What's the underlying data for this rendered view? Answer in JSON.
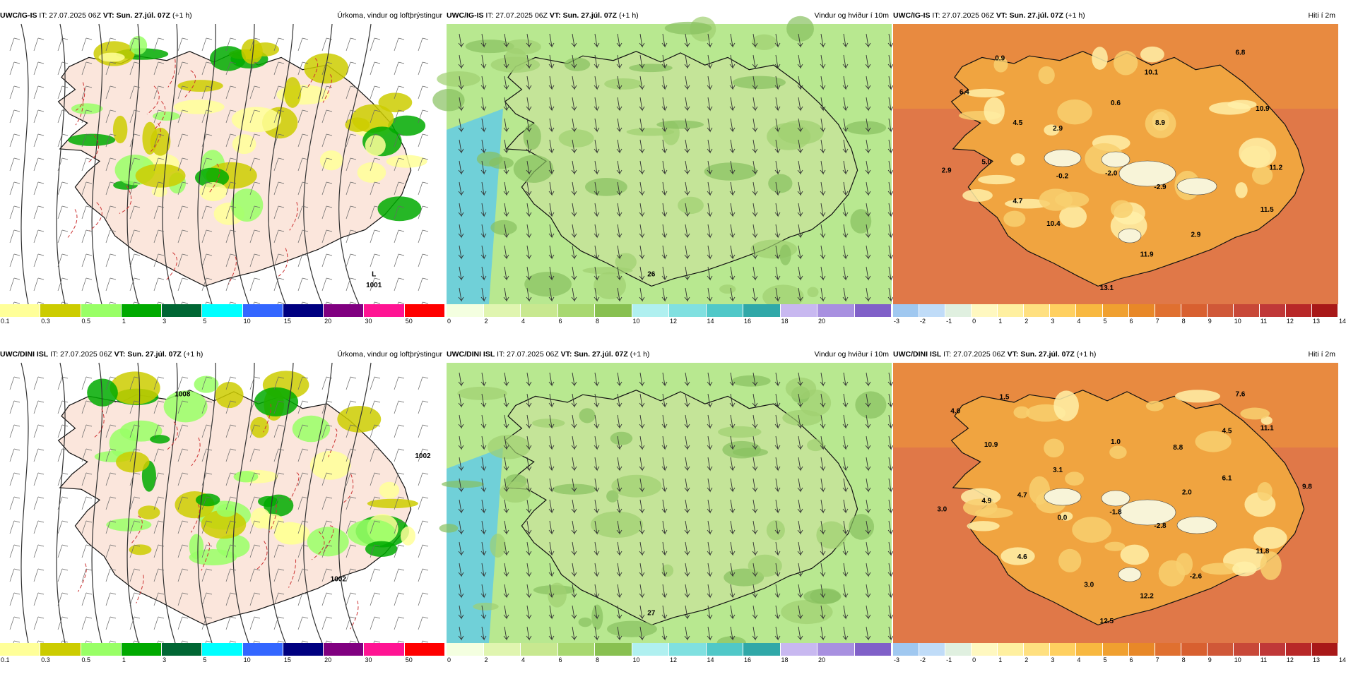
{
  "panels": [
    {
      "model": "UWC/IG-IS",
      "it": "IT: 27.07.2025 06Z",
      "vt": "VT: Sun. 27.júl. 07Z",
      "step": "(+1 h)",
      "title": "Úrkoma, vindur og loftþrýstingur",
      "type": "precip",
      "scale": {
        "colors": [
          "#ffff99",
          "#cccc00",
          "#99ff66",
          "#00aa00",
          "#006633",
          "#00ffff",
          "#3366ff",
          "#000080",
          "#800080",
          "#ff1493",
          "#ff0000"
        ],
        "ticks": [
          "0.1",
          "0.3",
          "0.5",
          "1",
          "3",
          "5",
          "10",
          "15",
          "20",
          "30",
          "50"
        ]
      },
      "labels": [
        {
          "text": "L"
        },
        {
          "text": "1001"
        }
      ]
    },
    {
      "model": "UWC/IG-IS",
      "it": "IT: 27.07.2025 06Z",
      "vt": "VT: Sun. 27.júl. 07Z",
      "step": "(+1 h)",
      "title": "Vindur og hviður í 10m",
      "type": "wind",
      "scale": {
        "colors": [
          "#f4ffe0",
          "#e0f5b0",
          "#c8e890",
          "#a8d870",
          "#88c050",
          "#b0f0f0",
          "#80e0e0",
          "#50c8c8",
          "#30a8a8",
          "#c8b8f0",
          "#a890e0",
          "#8060c8"
        ],
        "ticks": [
          "0",
          "2",
          "4",
          "6",
          "8",
          "10",
          "12",
          "14",
          "16",
          "18",
          "20"
        ]
      },
      "labels": [
        {
          "text": "26"
        }
      ]
    },
    {
      "model": "UWC/IG-IS",
      "it": "IT: 27.07.2025 06Z",
      "vt": "VT: Sun. 27.júl. 07Z",
      "step": "(+1 h)",
      "title": "Hiti í 2m",
      "type": "temp",
      "scale": {
        "colors": [
          "#a0c8f0",
          "#c0dcf8",
          "#e0f0e0",
          "#fff8c0",
          "#fff0a0",
          "#ffe080",
          "#ffd060",
          "#f8b840",
          "#f0a030",
          "#e88828",
          "#e07030",
          "#d86030",
          "#d05838",
          "#c84838",
          "#c03838",
          "#b82828",
          "#a81818"
        ],
        "ticks": [
          "-3",
          "-2",
          "-1",
          "0",
          "1",
          "2",
          "3",
          "4",
          "5",
          "6",
          "7",
          "8",
          "9",
          "10",
          "11",
          "12",
          "13",
          "14"
        ]
      },
      "labels": [
        {
          "text": "0.9"
        },
        {
          "text": "6.8"
        },
        {
          "text": "6.4"
        },
        {
          "text": "10.1"
        },
        {
          "text": "0.6"
        },
        {
          "text": "4.5"
        },
        {
          "text": "2.9"
        },
        {
          "text": "8.9"
        },
        {
          "text": "10.9"
        },
        {
          "text": "5.0"
        },
        {
          "text": "2.9"
        },
        {
          "text": "-0.2"
        },
        {
          "text": "-2.0"
        },
        {
          "text": "-2.9"
        },
        {
          "text": "11.2"
        },
        {
          "text": "4.7"
        },
        {
          "text": "11.5"
        },
        {
          "text": "10.4"
        },
        {
          "text": "2.9"
        },
        {
          "text": "11.9"
        },
        {
          "text": "13.1"
        }
      ]
    },
    {
      "model": "UWC/DINI ISL",
      "it": "IT: 27.07.2025 06Z",
      "vt": "VT: Sun. 27.júl. 07Z",
      "step": "(+1 h)",
      "title": "Úrkoma, vindur og loftþrýstingur",
      "type": "precip",
      "scale": {
        "colors": [
          "#ffff99",
          "#cccc00",
          "#99ff66",
          "#00aa00",
          "#006633",
          "#00ffff",
          "#3366ff",
          "#000080",
          "#800080",
          "#ff1493",
          "#ff0000"
        ],
        "ticks": [
          "0.1",
          "0.3",
          "0.5",
          "1",
          "3",
          "5",
          "10",
          "15",
          "20",
          "30",
          "50"
        ]
      },
      "labels": [
        {
          "text": "1002"
        },
        {
          "text": "1008"
        },
        {
          "text": "1002"
        }
      ]
    },
    {
      "model": "UWC/DINI ISL",
      "it": "IT: 27.07.2025 06Z",
      "vt": "VT: Sun. 27.júl. 07Z",
      "step": "(+1 h)",
      "title": "Vindur og hviður í 10m",
      "type": "wind",
      "scale": {
        "colors": [
          "#f4ffe0",
          "#e0f5b0",
          "#c8e890",
          "#a8d870",
          "#88c050",
          "#b0f0f0",
          "#80e0e0",
          "#50c8c8",
          "#30a8a8",
          "#c8b8f0",
          "#a890e0",
          "#8060c8"
        ],
        "ticks": [
          "0",
          "2",
          "4",
          "6",
          "8",
          "10",
          "12",
          "14",
          "16",
          "18",
          "20"
        ]
      },
      "labels": [
        {
          "text": "27"
        }
      ]
    },
    {
      "model": "UWC/DINI ISL",
      "it": "IT: 27.07.2025 06Z",
      "vt": "VT: Sun. 27.júl. 07Z",
      "step": "(+1 h)",
      "title": "Hiti í 2m",
      "type": "temp",
      "scale": {
        "colors": [
          "#a0c8f0",
          "#c0dcf8",
          "#e0f0e0",
          "#fff8c0",
          "#fff0a0",
          "#ffe080",
          "#ffd060",
          "#f8b840",
          "#f0a030",
          "#e88828",
          "#e07030",
          "#d86030",
          "#d05838",
          "#c84838",
          "#c03838",
          "#b82828",
          "#a81818"
        ],
        "ticks": [
          "-3",
          "-2",
          "-1",
          "0",
          "1",
          "2",
          "3",
          "4",
          "5",
          "6",
          "7",
          "8",
          "9",
          "10",
          "11",
          "12",
          "13",
          "14"
        ]
      },
      "labels": [
        {
          "text": "1.5"
        },
        {
          "text": "7.6"
        },
        {
          "text": "4.0"
        },
        {
          "text": "10.9"
        },
        {
          "text": "1.0"
        },
        {
          "text": "8.8"
        },
        {
          "text": "4.5"
        },
        {
          "text": "11.1"
        },
        {
          "text": "3.1"
        },
        {
          "text": "4.7"
        },
        {
          "text": "6.1"
        },
        {
          "text": "2.0"
        },
        {
          "text": "9.8"
        },
        {
          "text": "4.9"
        },
        {
          "text": "3.0"
        },
        {
          "text": "0.0"
        },
        {
          "text": "-1.8"
        },
        {
          "text": "-2.8"
        },
        {
          "text": "4.6"
        },
        {
          "text": "11.8"
        },
        {
          "text": "-2.6"
        },
        {
          "text": "3.0"
        },
        {
          "text": "12.2"
        },
        {
          "text": "12.5"
        }
      ]
    }
  ]
}
